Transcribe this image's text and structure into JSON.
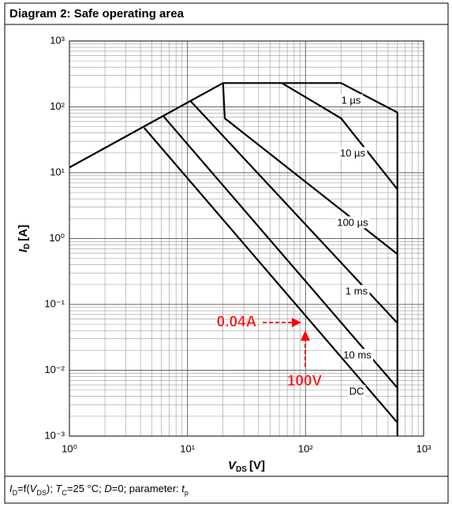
{
  "header": {
    "title": "Diagram 2: Safe operating area"
  },
  "chart_data": {
    "type": "line",
    "xscale": "log",
    "yscale": "log",
    "xlabel": {
      "symbol": "V",
      "subscript": "DS",
      "unit": "[V]"
    },
    "ylabel": {
      "symbol": "I",
      "subscript": "D",
      "unit": "[A]"
    },
    "xlim": [
      1,
      1000
    ],
    "ylim": [
      0.001,
      1000
    ],
    "xticks": [
      {
        "value": 1,
        "label": "10⁰"
      },
      {
        "value": 10,
        "label": "10¹"
      },
      {
        "value": 100,
        "label": "10²"
      },
      {
        "value": 1000,
        "label": "10³"
      }
    ],
    "yticks": [
      {
        "value": 0.001,
        "label": "10⁻³"
      },
      {
        "value": 0.01,
        "label": "10⁻²"
      },
      {
        "value": 0.1,
        "label": "10⁻¹"
      },
      {
        "value": 1,
        "label": "10⁰"
      },
      {
        "value": 10,
        "label": "10¹"
      },
      {
        "value": 100,
        "label": "10²"
      },
      {
        "value": 1000,
        "label": "10³"
      }
    ],
    "grid": true,
    "series": [
      {
        "name": "1 µs",
        "color": "#000000",
        "x": [
          1,
          20,
          200,
          600,
          600
        ],
        "values": [
          12,
          230,
          230,
          82,
          0.001
        ]
      },
      {
        "name": "10 µs",
        "color": "#000000",
        "x": [
          63,
          200,
          600
        ],
        "values": [
          230,
          67,
          5.6
        ]
      },
      {
        "name": "100 µs",
        "color": "#000000",
        "x": [
          20,
          20.7,
          600
        ],
        "values": [
          230,
          67,
          0.58
        ]
      },
      {
        "name": "1 ms",
        "color": "#000000",
        "x": [
          10.5,
          600
        ],
        "values": [
          125,
          0.052
        ]
      },
      {
        "name": "10 ms",
        "color": "#000000",
        "x": [
          6.3,
          600
        ],
        "values": [
          71,
          0.0054
        ]
      },
      {
        "name": "DC",
        "color": "#000000",
        "x": [
          4.3,
          600
        ],
        "values": [
          48,
          0.0016
        ]
      }
    ],
    "annotations": [
      {
        "text": "0.04A",
        "color": "#ff0000"
      },
      {
        "text": "100V",
        "color": "#ff0000"
      }
    ]
  },
  "footer": [
    {
      "text": "I",
      "style": "i"
    },
    {
      "text": "D",
      "style": "sub"
    },
    {
      "text": "=f(",
      "style": "n"
    },
    {
      "text": "V",
      "style": "i"
    },
    {
      "text": "DS",
      "style": "sub"
    },
    {
      "text": "); ",
      "style": "n"
    },
    {
      "text": "T",
      "style": "i"
    },
    {
      "text": "C",
      "style": "sub"
    },
    {
      "text": "=25 °C; ",
      "style": "n"
    },
    {
      "text": "D",
      "style": "i"
    },
    {
      "text": "=0; parameter: ",
      "style": "n"
    },
    {
      "text": "t",
      "style": "i"
    },
    {
      "text": "p",
      "style": "sub"
    }
  ]
}
